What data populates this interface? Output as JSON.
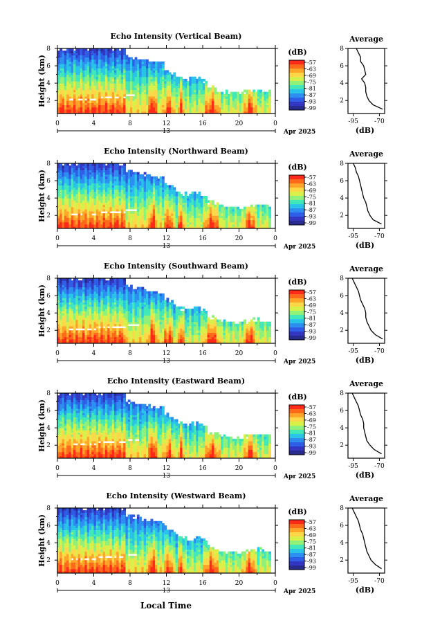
{
  "figure": {
    "x_axis_label": "Local Time",
    "date_label": "Apr 2025",
    "date_marker": "13",
    "average_title": "Average",
    "units_label": "(dB)",
    "height_label": "Height (km)"
  },
  "chart_data": [
    {
      "type": "heatmap",
      "title": "Echo Intensity (Vertical Beam)",
      "xlabel": "",
      "ylabel": "Height (km)",
      "x_ticks": [
        "0",
        "4",
        "8",
        "12",
        "16",
        "20",
        "0"
      ],
      "y_ticks": [
        "2",
        "4",
        "6",
        "8"
      ],
      "xlim": [
        0,
        24
      ],
      "ylim": [
        0.5,
        8
      ],
      "colorbar_ticks": [
        "-57",
        "-63",
        "-69",
        "-75",
        "-81",
        "-87",
        "-93",
        "-99"
      ],
      "colorbar_unit": "(dB)",
      "profile": {
        "title": "Average",
        "xlabel": "(dB)",
        "x_ticks": [
          "-95",
          "-70"
        ],
        "xlim": [
          -100,
          -65
        ],
        "heights": [
          1,
          1.5,
          2,
          2.5,
          3,
          3.5,
          4,
          4.5,
          5,
          5.5,
          6,
          6.5,
          7,
          7.5,
          8
        ],
        "values": [
          -67,
          -76,
          -80,
          -82,
          -83,
          -83,
          -84,
          -87,
          -83,
          -84,
          -85,
          -88,
          -88,
          -90,
          -92
        ]
      }
    },
    {
      "type": "heatmap",
      "title": "Echo Intensity (Northward Beam)",
      "xlabel": "",
      "ylabel": "Height (km)",
      "x_ticks": [
        "0",
        "4",
        "8",
        "12",
        "16",
        "20",
        "0"
      ],
      "y_ticks": [
        "2",
        "4",
        "6",
        "8"
      ],
      "xlim": [
        0,
        24
      ],
      "ylim": [
        0.5,
        8
      ],
      "colorbar_ticks": [
        "-57",
        "-63",
        "-69",
        "-75",
        "-81",
        "-87",
        "-93",
        "-99"
      ],
      "colorbar_unit": "(dB)",
      "profile": {
        "title": "Average",
        "xlabel": "(dB)",
        "x_ticks": [
          "-95",
          "-70"
        ],
        "xlim": [
          -100,
          -65
        ],
        "heights": [
          1,
          1.5,
          2,
          2.5,
          3,
          3.5,
          4,
          4.5,
          5,
          5.5,
          6,
          6.5,
          7,
          7.5,
          8
        ],
        "values": [
          -68,
          -76,
          -79,
          -81,
          -82,
          -83,
          -85,
          -86,
          -87,
          -88,
          -89,
          -90,
          -92,
          -93,
          -95
        ]
      }
    },
    {
      "type": "heatmap",
      "title": "Echo Intensity (Southward Beam)",
      "xlabel": "",
      "ylabel": "Height (km)",
      "x_ticks": [
        "0",
        "4",
        "8",
        "12",
        "16",
        "20",
        "0"
      ],
      "y_ticks": [
        "2",
        "4",
        "6",
        "8"
      ],
      "xlim": [
        0,
        24
      ],
      "ylim": [
        0.5,
        8
      ],
      "colorbar_ticks": [
        "-57",
        "-63",
        "-69",
        "-75",
        "-81",
        "-87",
        "-93",
        "-99"
      ],
      "colorbar_unit": "(dB)",
      "profile": {
        "title": "Average",
        "xlabel": "(dB)",
        "x_ticks": [
          "-95",
          "-70"
        ],
        "xlim": [
          -100,
          -65
        ],
        "heights": [
          1,
          1.5,
          2,
          2.5,
          3,
          3.5,
          4,
          4.5,
          5,
          5.5,
          6,
          6.5,
          7,
          7.5,
          8
        ],
        "values": [
          -67,
          -74,
          -78,
          -80,
          -82,
          -83,
          -83,
          -84,
          -86,
          -88,
          -89,
          -90,
          -92,
          -94,
          -96
        ]
      }
    },
    {
      "type": "heatmap",
      "title": "Echo Intensity (Eastward Beam)",
      "xlabel": "",
      "ylabel": "Height (km)",
      "x_ticks": [
        "0",
        "4",
        "8",
        "12",
        "16",
        "20",
        "0"
      ],
      "y_ticks": [
        "2",
        "4",
        "6",
        "8"
      ],
      "xlim": [
        0,
        24
      ],
      "ylim": [
        0.5,
        8
      ],
      "colorbar_ticks": [
        "-57",
        "-63",
        "-69",
        "-75",
        "-81",
        "-87",
        "-93",
        "-99"
      ],
      "colorbar_unit": "(dB)",
      "profile": {
        "title": "Average",
        "xlabel": "(dB)",
        "x_ticks": [
          "-95",
          "-70"
        ],
        "xlim": [
          -100,
          -65
        ],
        "heights": [
          1,
          1.5,
          2,
          2.5,
          3,
          3.5,
          4,
          4.5,
          5,
          5.5,
          6,
          6.5,
          7,
          7.5,
          8
        ],
        "values": [
          -68,
          -75,
          -79,
          -82,
          -83,
          -84,
          -85,
          -85,
          -86,
          -88,
          -89,
          -90,
          -92,
          -94,
          -96
        ]
      }
    },
    {
      "type": "heatmap",
      "title": "Echo Intensity (Westward Beam)",
      "xlabel": "Local Time",
      "ylabel": "Height (km)",
      "x_ticks": [
        "0",
        "4",
        "8",
        "12",
        "16",
        "20",
        "0"
      ],
      "y_ticks": [
        "2",
        "4",
        "6",
        "8"
      ],
      "xlim": [
        0,
        24
      ],
      "ylim": [
        0.5,
        8
      ],
      "colorbar_ticks": [
        "-57",
        "-63",
        "-69",
        "-75",
        "-81",
        "-87",
        "-93",
        "-99"
      ],
      "colorbar_unit": "(dB)",
      "profile": {
        "title": "Average",
        "xlabel": "(dB)",
        "x_ticks": [
          "-95",
          "-70"
        ],
        "xlim": [
          -100,
          -65
        ],
        "heights": [
          1,
          1.5,
          2,
          2.5,
          3,
          3.5,
          4,
          4.5,
          5,
          5.5,
          6,
          6.5,
          7,
          7.5,
          8
        ],
        "values": [
          -68,
          -74,
          -78,
          -80,
          -82,
          -83,
          -84,
          -85,
          -86,
          -88,
          -89,
          -90,
          -92,
          -94,
          -96
        ]
      }
    }
  ],
  "colors": {
    "colormap": [
      "#ff2a1a",
      "#ff6a1a",
      "#ffa52a",
      "#ffd84a",
      "#d8f04a",
      "#8ff07a",
      "#42e8b8",
      "#29c4e8",
      "#2d8ff0",
      "#2e5ee6",
      "#3236c0",
      "#282a8e"
    ],
    "axis": "#000000",
    "background": "#ffffff"
  }
}
